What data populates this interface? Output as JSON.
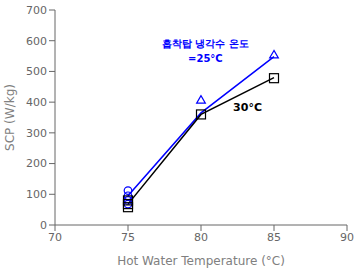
{
  "chart_data": {
    "type": "line",
    "xlabel": "Hot Water Temperature (°C)",
    "ylabel": "SCP (W/kg)",
    "xlim": [
      70,
      90
    ],
    "ylim": [
      0,
      700
    ],
    "xticks": [
      70,
      75,
      80,
      85,
      90
    ],
    "yticks": [
      0,
      100,
      200,
      300,
      400,
      500,
      600,
      700
    ],
    "grid": false,
    "series": [
      {
        "type": "line",
        "color": "#0000ff",
        "x": [
          75,
          80,
          85
        ],
        "values": [
          95,
          365,
          548
        ]
      },
      {
        "type": "line",
        "color": "#000000",
        "x": [
          75,
          80,
          85
        ],
        "values": [
          68,
          360,
          480
        ]
      },
      {
        "type": "scatter",
        "marker": "circle",
        "color": "#0000ff",
        "x": [
          75,
          75,
          75,
          75
        ],
        "values": [
          112,
          95,
          80,
          68
        ]
      },
      {
        "type": "scatter",
        "marker": "triangle",
        "color": "#0000ff",
        "x": [
          80,
          85
        ],
        "values": [
          405,
          552
        ]
      },
      {
        "type": "scatter",
        "marker": "square",
        "color": "#000000",
        "x": [
          75,
          75,
          75,
          80,
          85
        ],
        "values": [
          80,
          68,
          58,
          360,
          478
        ]
      }
    ],
    "annotations": [
      {
        "text": "흡착탑 냉각수 온도",
        "color": "#0000ff"
      },
      {
        "text": "=25°C",
        "color": "#0000ff"
      },
      {
        "text": "30°C",
        "color": "#000000"
      }
    ]
  }
}
